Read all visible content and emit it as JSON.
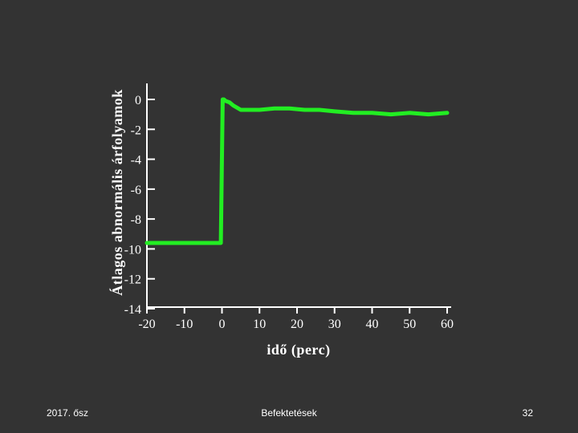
{
  "chart_data": {
    "type": "line",
    "title": "",
    "xlabel": "idő (perc)",
    "ylabel": "Átlagos abnormális árfolyamok",
    "xlim": [
      -20,
      60
    ],
    "ylim": [
      -14,
      0
    ],
    "x_ticks": [
      -20,
      -10,
      0,
      10,
      20,
      30,
      40,
      50,
      60
    ],
    "y_ticks": [
      0,
      -2,
      -4,
      -6,
      -8,
      -10,
      -12,
      -14
    ],
    "grid": false,
    "series": [
      {
        "color": "#22ee22",
        "x": [
          -20,
          -15,
          -10,
          -5,
          -1,
          -0.3,
          0.2,
          0.5,
          1,
          2,
          3,
          5,
          7,
          10,
          14,
          18,
          22,
          26,
          30,
          35,
          40,
          45,
          50,
          55,
          60
        ],
        "y": [
          -9.6,
          -9.6,
          -9.6,
          -9.6,
          -9.6,
          -9.6,
          0.0,
          0.0,
          -0.1,
          -0.2,
          -0.4,
          -0.7,
          -0.7,
          -0.7,
          -0.6,
          -0.6,
          -0.7,
          -0.7,
          -0.8,
          -0.9,
          -0.9,
          -1.0,
          -0.9,
          -1.0,
          -0.9
        ]
      }
    ]
  },
  "footer": {
    "left": "2017. ősz",
    "center": "Befektetések",
    "right": "32"
  }
}
